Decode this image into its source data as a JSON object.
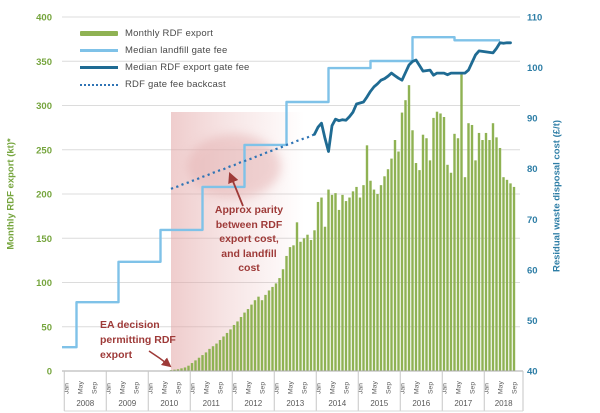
{
  "chart_data": {
    "type": "bar",
    "subtype": "combo-bar-and-lines",
    "title": "",
    "x_axis": {
      "years": [
        "2008",
        "2009",
        "2010",
        "2011",
        "2012",
        "2013",
        "2014",
        "2015",
        "2016",
        "2017",
        "2018"
      ],
      "month_labels": [
        "Jan",
        "May",
        "Sep"
      ]
    },
    "left_axis": {
      "title": "Monthly RDF export (kt)*",
      "ticks": [
        0,
        50,
        100,
        150,
        200,
        250,
        300,
        350,
        400
      ],
      "range": [
        0,
        400
      ],
      "color": "#76A53E"
    },
    "right_axis": {
      "title": "Residual waste disposal cost (£/t)",
      "ticks": [
        40,
        50,
        60,
        70,
        80,
        90,
        100,
        110
      ],
      "range": [
        40,
        110
      ],
      "color": "#2E7EA6"
    },
    "grid": "horizontal",
    "legend_position": "top-left-inside",
    "series": [
      {
        "name": "Monthly RDF export",
        "type": "bar",
        "axis": "left",
        "color": "#8FB253",
        "start": "2010-07",
        "monthly_values": [
          1,
          1.5,
          2,
          3,
          4,
          6,
          9,
          12,
          15,
          18,
          21,
          25,
          28,
          31,
          35,
          39,
          43,
          47,
          52,
          56,
          61,
          66,
          70,
          75,
          80,
          84,
          80,
          86,
          91,
          95,
          99,
          105,
          115,
          130,
          140,
          142,
          168,
          146,
          150,
          154,
          148,
          159,
          191,
          196,
          163,
          205,
          199,
          201,
          182,
          199,
          192,
          196,
          203,
          208,
          196,
          210,
          255,
          215,
          205,
          200,
          210,
          220,
          228,
          240,
          261,
          248,
          292,
          306,
          323,
          272,
          235,
          227,
          267,
          263,
          238,
          286,
          293,
          291,
          287,
          233,
          224,
          268,
          263,
          335,
          219,
          280,
          278,
          238,
          269,
          261,
          269,
          261,
          280,
          264,
          252,
          219,
          216,
          212,
          208
        ]
      },
      {
        "name": "Median landfill gate fee",
        "type": "step-line",
        "axis": "right",
        "color": "#7FC2E8",
        "steps": [
          [
            "2008-01",
            44.7
          ],
          [
            "2008-04",
            53.6
          ],
          [
            "2009-04",
            61.6
          ],
          [
            "2010-04",
            67.9
          ],
          [
            "2011-04",
            76.4
          ],
          [
            "2012-04",
            84.7
          ],
          [
            "2013-04",
            93.2
          ],
          [
            "2014-04",
            99.9
          ],
          [
            "2015-04",
            101.3
          ],
          [
            "2016-04",
            106.0
          ],
          [
            "2017-04",
            105.4
          ]
        ],
        "end": "2018-05"
      },
      {
        "name": "Median RDF export gate fee",
        "type": "line",
        "axis": "right",
        "color": "#1F6B93",
        "start": "2013-12",
        "monthly_values": [
          86.8,
          88.2,
          89.0,
          86.0,
          83.4,
          88.5,
          89.8,
          89.5,
          89.7,
          89.6,
          90.3,
          91.2,
          92.8,
          93.0,
          93.2,
          94.2,
          95.3,
          96.2,
          96.8,
          97.5,
          97.8,
          98.3,
          98.9,
          98.4,
          97.9,
          97.5,
          99.0,
          100.5,
          101.2,
          101.5,
          100.4,
          99.3,
          99.4,
          99.5,
          98.5,
          98.9,
          98.9,
          98.9,
          98.6,
          98.9,
          98.9,
          98.9,
          98.9,
          98.9,
          99.5,
          101.0,
          102.5,
          103.3,
          103.2,
          103.1,
          103.0,
          102.9,
          103.8,
          104.9,
          104.8,
          104.9,
          104.9
        ]
      },
      {
        "name": "RDF gate fee backcast",
        "type": "dotted-line",
        "axis": "right",
        "color": "#2F74B5",
        "start": "2010-07",
        "monthly_values": [
          76.0,
          76.3,
          76.5,
          76.8,
          77.1,
          77.3,
          77.6,
          77.8,
          78.1,
          78.4,
          78.6,
          78.9,
          79.2,
          79.4,
          79.7,
          79.9,
          80.2,
          80.5,
          80.7,
          81.0,
          81.3,
          81.5,
          81.8,
          82.0,
          82.3,
          82.6,
          82.8,
          83.1,
          83.4,
          83.6,
          83.9,
          84.1,
          84.4,
          84.7,
          84.9,
          85.2,
          85.5,
          85.7,
          86.0,
          86.2,
          86.5,
          86.8
        ]
      }
    ],
    "annotations": {
      "parity": {
        "lines": [
          "Approx parity",
          "between RDF",
          "export cost,",
          "and landfill",
          "cost"
        ],
        "color": "#9E3A38"
      },
      "ea": {
        "lines": [
          "EA decision",
          "permitting RDF",
          "export"
        ],
        "color": "#9E3A38"
      },
      "shaded_band": {
        "from": "2010-07",
        "to": "2013-09",
        "color": "#E2A4A4"
      },
      "highlight_ellipse": {
        "center_month": "2012-01",
        "center_value": 80.5,
        "color": "#E3AFAF"
      }
    },
    "colors": {
      "gridline": "#DCDCDC",
      "axis_line": "#ABABAB",
      "x_label": "#595959"
    }
  }
}
